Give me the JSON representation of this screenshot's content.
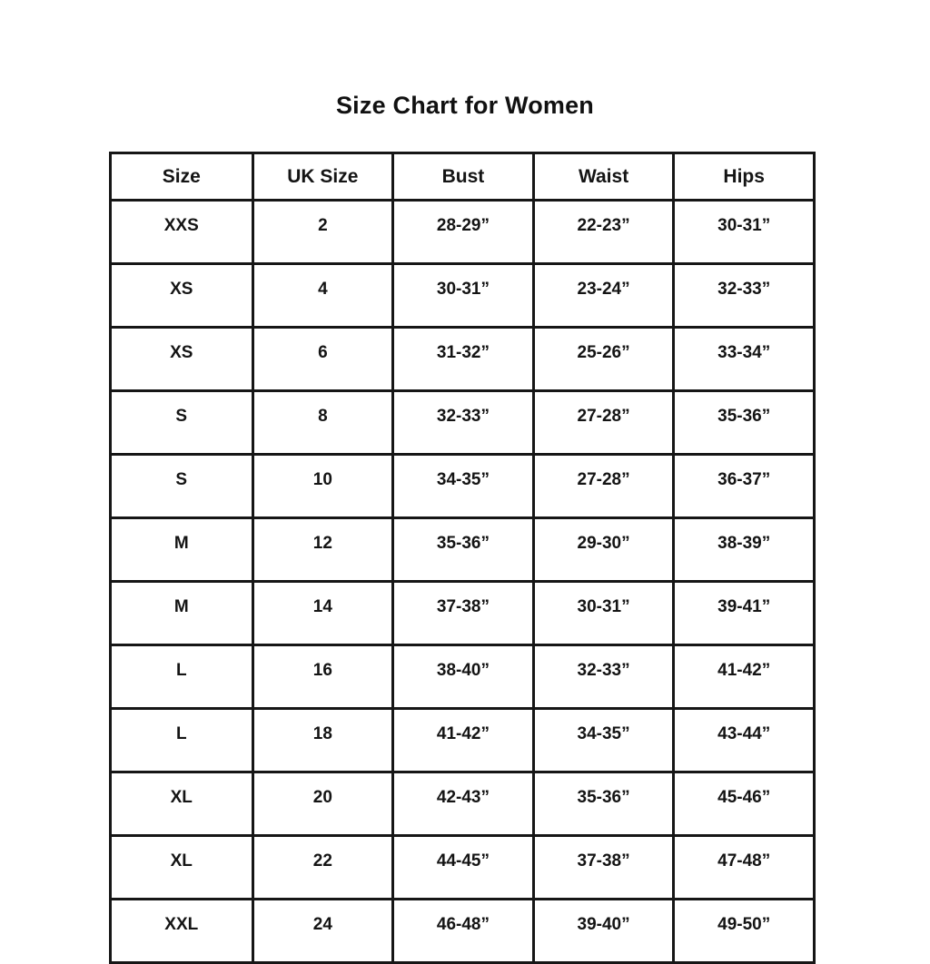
{
  "page": {
    "title": "Size Chart for Women"
  },
  "colors": {
    "background": "#ffffff",
    "border": "#161616",
    "text": "#141414"
  },
  "chart_data": {
    "type": "table",
    "title": "Size Chart for Women",
    "headers": [
      "Size",
      "UK Size",
      "Bust",
      "Waist",
      "Hips"
    ],
    "rows": [
      [
        "XXS",
        "2",
        "28-29”",
        "22-23”",
        "30-31”"
      ],
      [
        "XS",
        "4",
        "30-31”",
        "23-24”",
        "32-33”"
      ],
      [
        "XS",
        "6",
        "31-32”",
        "25-26”",
        "33-34”"
      ],
      [
        "S",
        "8",
        "32-33”",
        "27-28”",
        "35-36”"
      ],
      [
        "S",
        "10",
        "34-35”",
        "27-28”",
        "36-37”"
      ],
      [
        "M",
        "12",
        "35-36”",
        "29-30”",
        "38-39”"
      ],
      [
        "M",
        "14",
        "37-38”",
        "30-31”",
        "39-41”"
      ],
      [
        "L",
        "16",
        "38-40”",
        "32-33”",
        "41-42”"
      ],
      [
        "L",
        "18",
        "41-42”",
        "34-35”",
        "43-44”"
      ],
      [
        "XL",
        "20",
        "42-43”",
        "35-36”",
        "45-46”"
      ],
      [
        "XL",
        "22",
        "44-45”",
        "37-38”",
        "47-48”"
      ],
      [
        "XXL",
        "24",
        "46-48”",
        "39-40”",
        "49-50”"
      ]
    ]
  }
}
